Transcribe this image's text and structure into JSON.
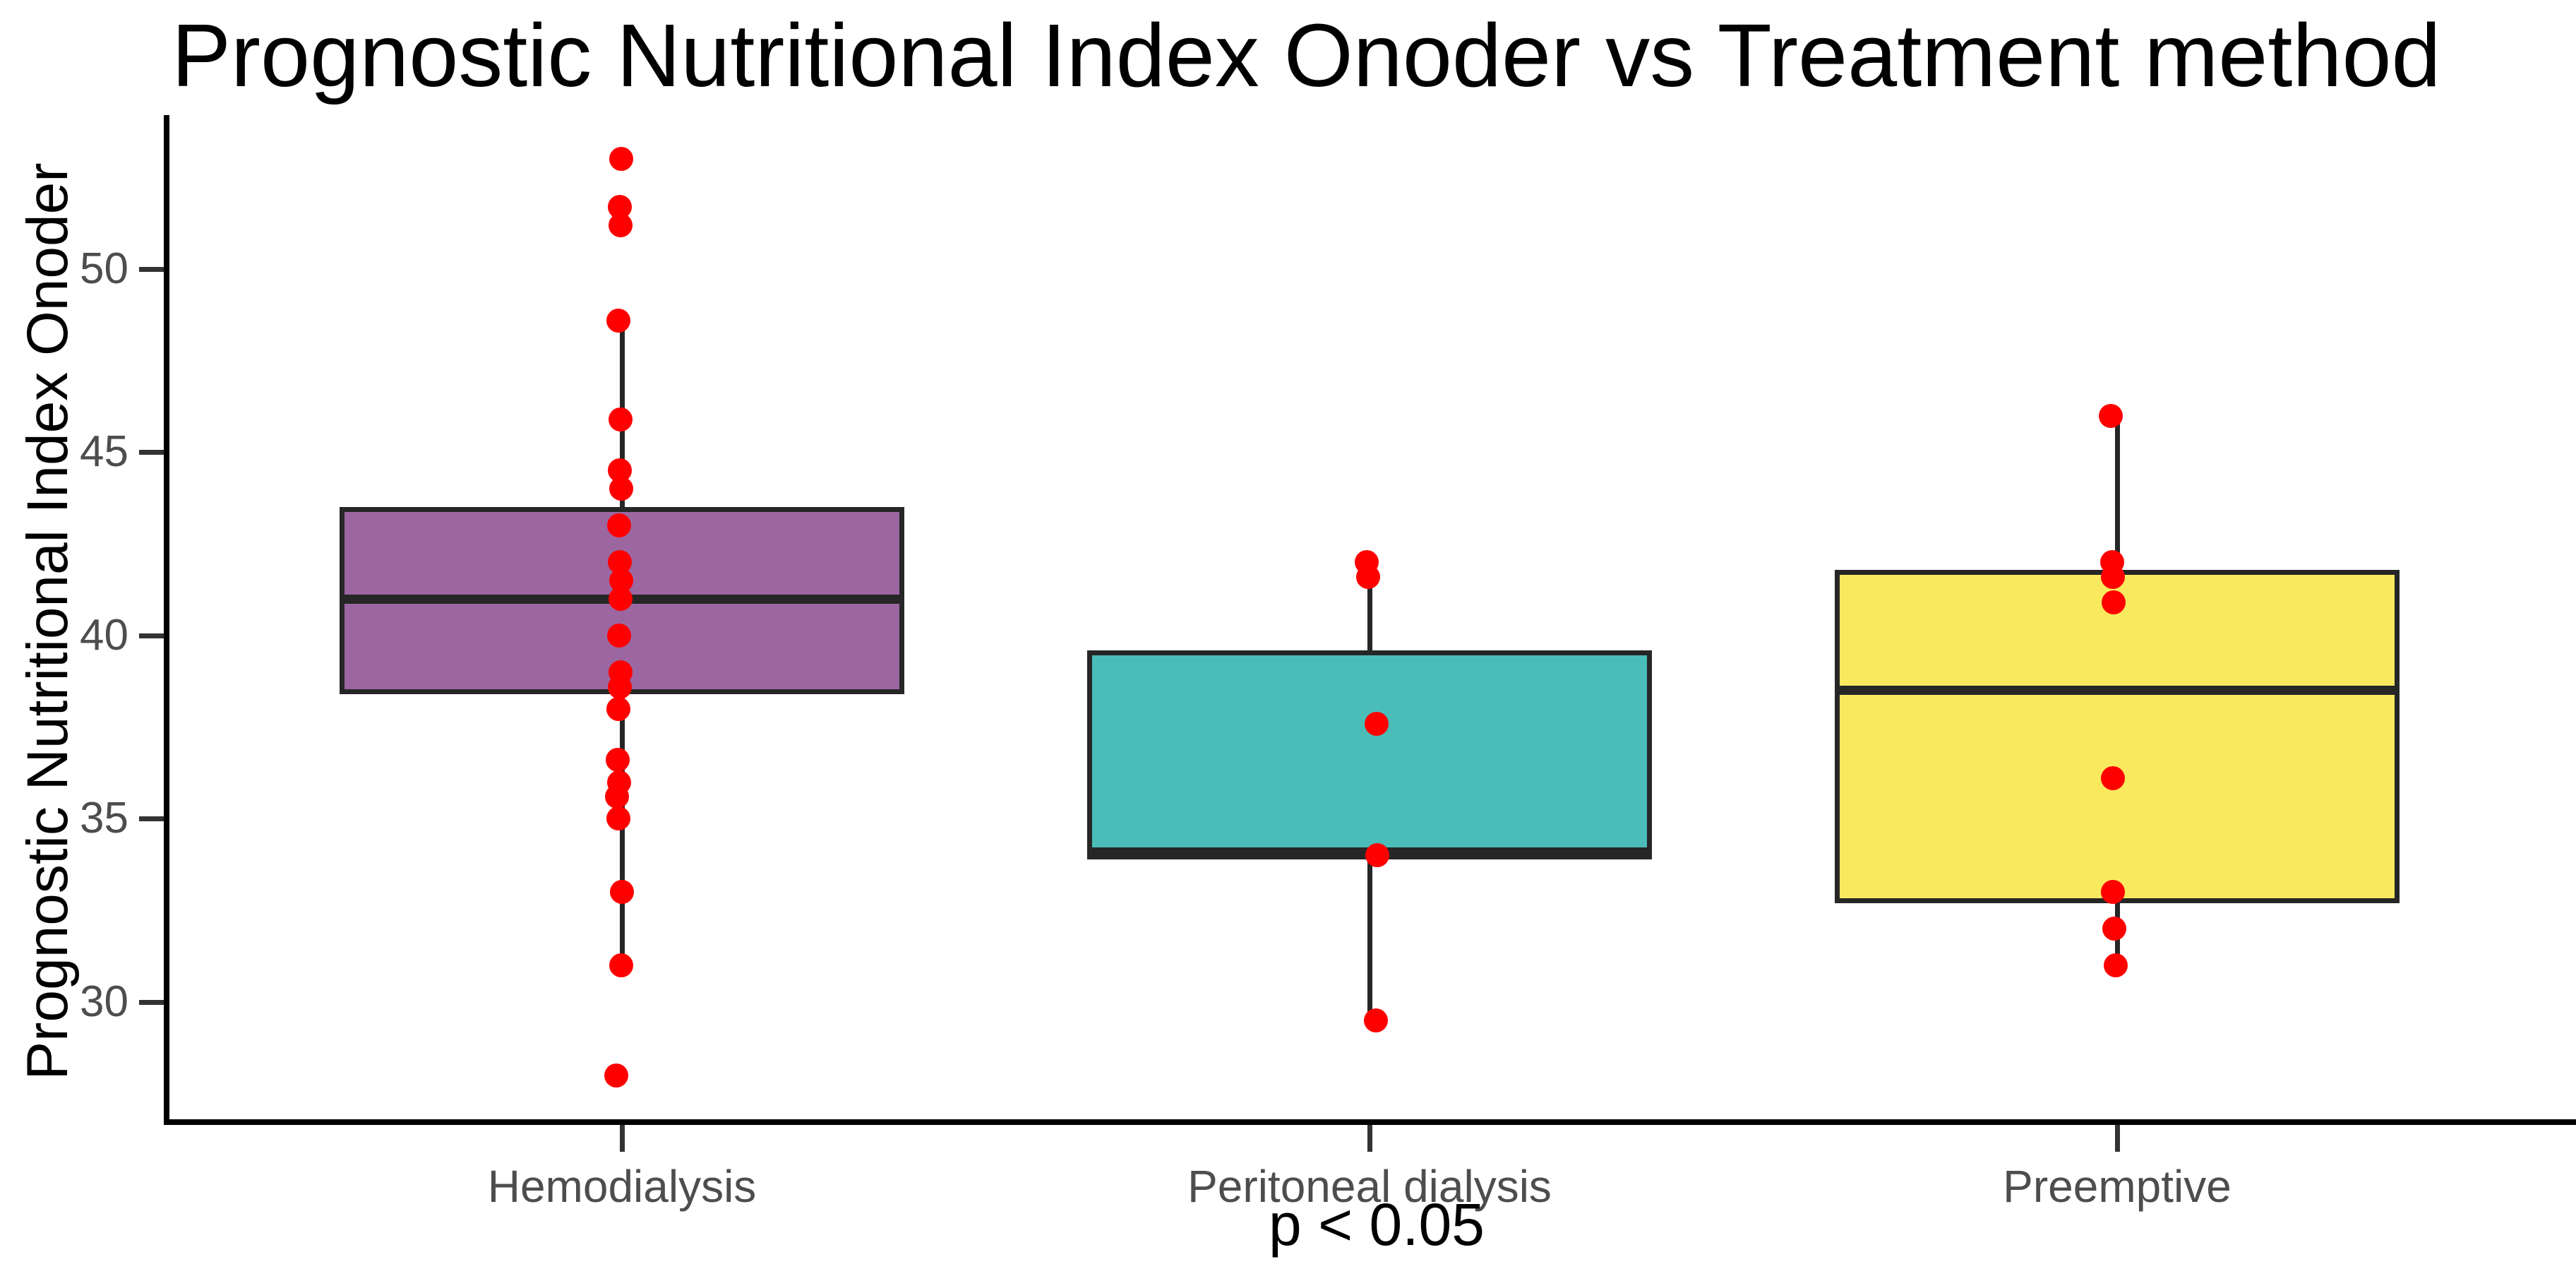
{
  "title": "Prognostic Nutritional Index Onoder vs Treatment method",
  "y_axis": {
    "label": "Prognostic Nutritional Index Onoder",
    "tick_values": [
      30,
      35,
      40,
      45,
      50
    ]
  },
  "x_axis": {
    "caption": "p < 0.05"
  },
  "colors": {
    "point": "#FF0000",
    "line": "#262626",
    "axis": "#000000",
    "tick_text": "#4d4d4d",
    "title_text": "#000000",
    "hemodialysis_fill": "#9C67A1",
    "peritoneal_fill": "#4BBDB9",
    "preemptive_fill": "#F9E95F"
  },
  "chart_data": {
    "type": "boxplot",
    "title": "Prognostic Nutritional Index Onoder vs Treatment method",
    "ylabel": "Prognostic Nutritional Index Onoder",
    "xlabel": "p < 0.05",
    "ylim": [
      26.8,
      54.2
    ],
    "yticks": [
      30,
      35,
      40,
      45,
      50
    ],
    "grid": false,
    "legend": "none",
    "point_color": "#FF0000",
    "categories": [
      "Hemodialysis",
      "Peritoneal dialysis",
      "Preemptive"
    ],
    "series": [
      {
        "name": "Hemodialysis",
        "fill": "#9C67A1",
        "box": {
          "q1": 38.4,
          "median": 41.0,
          "q3": 43.5,
          "whisker_low": 31.0,
          "whisker_high": 48.6
        },
        "points": [
          53.0,
          51.7,
          51.2,
          48.6,
          45.9,
          44.5,
          44.0,
          43.0,
          42.0,
          41.5,
          41.0,
          40.0,
          39.0,
          38.6,
          38.0,
          36.6,
          36.0,
          35.6,
          35.0,
          33.0,
          31.0,
          28.0
        ],
        "point_dx": [
          -1,
          -3,
          -2,
          -5,
          -2,
          -3,
          -1,
          -4,
          -3,
          -1,
          -2,
          -4,
          -2,
          -3,
          -5,
          -6,
          -4,
          -7,
          -5,
          0,
          -1,
          -8
        ]
      },
      {
        "name": "Peritoneal dialysis",
        "fill": "#4BBDB9",
        "box": {
          "q1": 33.9,
          "median": 34.1,
          "q3": 39.6,
          "whisker_low": 29.5,
          "whisker_high": 41.9
        },
        "points": [
          42.0,
          41.6,
          37.6,
          34.0,
          29.5
        ],
        "point_dx": [
          -4,
          -2,
          10,
          11,
          9
        ]
      },
      {
        "name": "Preemptive",
        "fill": "#F9E95F",
        "box": {
          "q1": 32.7,
          "median": 38.5,
          "q3": 41.8,
          "whisker_low": 31.0,
          "whisker_high": 46.0
        },
        "points": [
          46.0,
          42.0,
          41.6,
          40.9,
          36.1,
          33.0,
          32.0,
          31.0
        ],
        "point_dx": [
          -9,
          -7,
          -6,
          -5,
          -6,
          -6,
          -4,
          -2
        ]
      }
    ]
  }
}
